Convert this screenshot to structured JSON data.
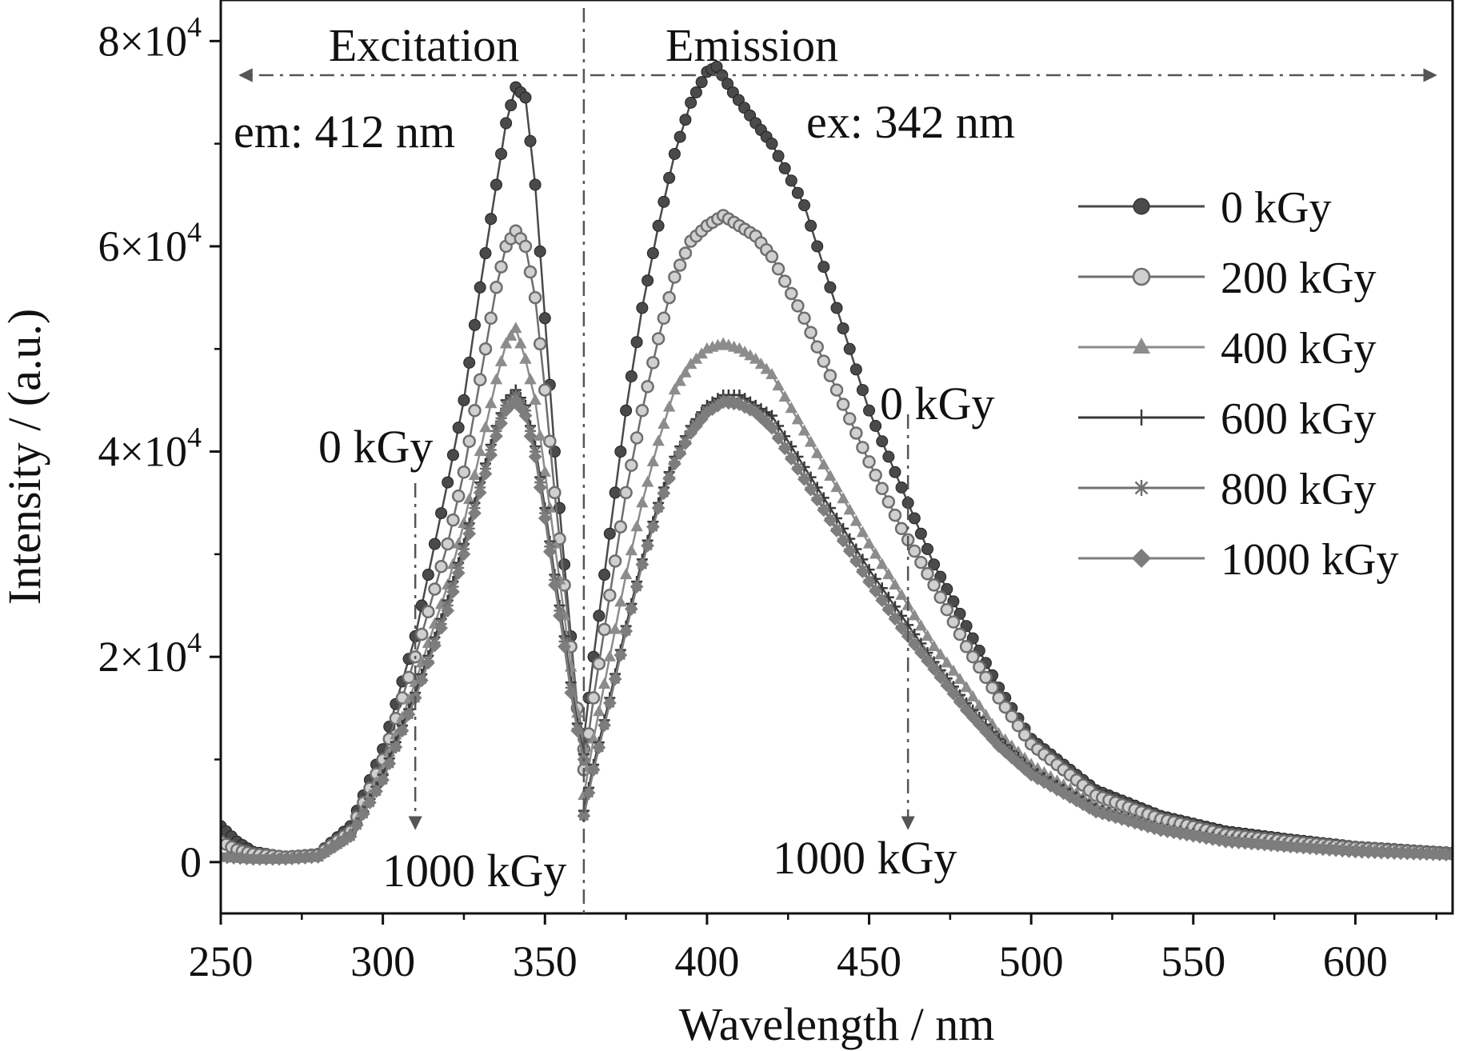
{
  "chart_data": {
    "type": "line",
    "xlabel": "Wavelength / nm",
    "ylabel": "Intensity / (a.u.)",
    "xlim": [
      250,
      630
    ],
    "ylim": [
      -5000,
      84000
    ],
    "x_ticks": [
      250,
      300,
      350,
      400,
      450,
      500,
      550,
      600
    ],
    "x_tick_labels": [
      "250",
      "300",
      "350",
      "400",
      "450",
      "500",
      "550",
      "600"
    ],
    "y_ticks": [
      0,
      20000,
      40000,
      60000,
      80000
    ],
    "y_tick_labels": [
      {
        "mantissa": "0",
        "exp": ""
      },
      {
        "mantissa": "2×10",
        "exp": "4"
      },
      {
        "mantissa": "4×10",
        "exp": "4"
      },
      {
        "mantissa": "6×10",
        "exp": "4"
      },
      {
        "mantissa": "8×10",
        "exp": "4"
      }
    ],
    "grid": false,
    "legend_position": "right",
    "divider_x": 362,
    "region_labels": {
      "excitation": "Excitation",
      "emission": "Emission",
      "em_note": "em: 412 nm",
      "ex_note": "ex: 342 nm"
    },
    "arrow_labels": {
      "left_top": "0 kGy",
      "left_bottom": "1000 kGy",
      "right_top": "0 kGy",
      "right_bottom": "1000 kGy"
    },
    "arrow_x": {
      "left": 310,
      "right": 462
    },
    "series": [
      {
        "name": "0 kGy",
        "marker": "circle-filled",
        "color": "#4a4a4a",
        "excitation": [
          [
            250,
            3500
          ],
          [
            255,
            2000
          ],
          [
            260,
            1000
          ],
          [
            270,
            500
          ],
          [
            280,
            800
          ],
          [
            290,
            3500
          ],
          [
            300,
            11000
          ],
          [
            310,
            22000
          ],
          [
            320,
            37000
          ],
          [
            325,
            45000
          ],
          [
            330,
            56000
          ],
          [
            335,
            66000
          ],
          [
            338,
            72000
          ],
          [
            341,
            75500
          ],
          [
            344,
            74500
          ],
          [
            347,
            66000
          ],
          [
            350,
            53000
          ],
          [
            353,
            40000
          ],
          [
            356,
            29000
          ],
          [
            358,
            22000
          ],
          [
            360,
            15000
          ],
          [
            362,
            12000
          ]
        ],
        "emission": [
          [
            362,
            12000
          ],
          [
            365,
            20000
          ],
          [
            370,
            32000
          ],
          [
            375,
            44000
          ],
          [
            380,
            54000
          ],
          [
            385,
            62000
          ],
          [
            390,
            69000
          ],
          [
            395,
            74000
          ],
          [
            400,
            77000
          ],
          [
            403,
            77500
          ],
          [
            408,
            75000
          ],
          [
            415,
            72000
          ],
          [
            420,
            70000
          ],
          [
            430,
            64000
          ],
          [
            440,
            54000
          ],
          [
            450,
            44000
          ],
          [
            460,
            36500
          ],
          [
            470,
            29000
          ],
          [
            480,
            23000
          ],
          [
            490,
            17000
          ],
          [
            500,
            12000
          ],
          [
            520,
            7000
          ],
          [
            540,
            4500
          ],
          [
            560,
            3000
          ],
          [
            580,
            2200
          ],
          [
            600,
            1500
          ],
          [
            630,
            900
          ]
        ]
      },
      {
        "name": "200 kGy",
        "marker": "circle-open",
        "color": "#6e6e6e",
        "excitation": [
          [
            250,
            2000
          ],
          [
            255,
            1200
          ],
          [
            260,
            800
          ],
          [
            270,
            500
          ],
          [
            280,
            700
          ],
          [
            290,
            3000
          ],
          [
            300,
            10000
          ],
          [
            310,
            20000
          ],
          [
            320,
            31000
          ],
          [
            325,
            38000
          ],
          [
            330,
            47000
          ],
          [
            335,
            56000
          ],
          [
            338,
            60000
          ],
          [
            341,
            61500
          ],
          [
            344,
            60000
          ],
          [
            347,
            55000
          ],
          [
            350,
            46000
          ],
          [
            353,
            36000
          ],
          [
            356,
            27000
          ],
          [
            358,
            21000
          ],
          [
            360,
            15000
          ],
          [
            362,
            11000
          ]
        ],
        "emission": [
          [
            362,
            9000
          ],
          [
            365,
            16000
          ],
          [
            370,
            26000
          ],
          [
            375,
            36000
          ],
          [
            380,
            44000
          ],
          [
            385,
            51000
          ],
          [
            390,
            57000
          ],
          [
            395,
            60500
          ],
          [
            400,
            62000
          ],
          [
            405,
            63000
          ],
          [
            410,
            62000
          ],
          [
            415,
            61000
          ],
          [
            420,
            59000
          ],
          [
            430,
            53000
          ],
          [
            440,
            46000
          ],
          [
            450,
            39000
          ],
          [
            460,
            32500
          ],
          [
            470,
            27000
          ],
          [
            480,
            21000
          ],
          [
            490,
            16000
          ],
          [
            500,
            11500
          ],
          [
            520,
            6500
          ],
          [
            540,
            4200
          ],
          [
            560,
            2700
          ],
          [
            580,
            2000
          ],
          [
            600,
            1400
          ],
          [
            630,
            800
          ]
        ]
      },
      {
        "name": "400 kGy",
        "marker": "triangle",
        "color": "#8c8c8c",
        "excitation": [
          [
            250,
            500
          ],
          [
            260,
            300
          ],
          [
            270,
            300
          ],
          [
            280,
            500
          ],
          [
            290,
            2800
          ],
          [
            300,
            9000
          ],
          [
            310,
            17500
          ],
          [
            320,
            27000
          ],
          [
            325,
            33000
          ],
          [
            330,
            40000
          ],
          [
            335,
            47000
          ],
          [
            338,
            50500
          ],
          [
            341,
            52000
          ],
          [
            344,
            49000
          ],
          [
            347,
            45000
          ],
          [
            350,
            38000
          ],
          [
            353,
            31000
          ],
          [
            356,
            24000
          ],
          [
            358,
            19000
          ],
          [
            360,
            14500
          ],
          [
            362,
            11000
          ]
        ],
        "emission": [
          [
            362,
            6500
          ],
          [
            365,
            12000
          ],
          [
            370,
            20000
          ],
          [
            375,
            28000
          ],
          [
            380,
            35000
          ],
          [
            385,
            41000
          ],
          [
            390,
            46000
          ],
          [
            395,
            48500
          ],
          [
            400,
            50000
          ],
          [
            405,
            50500
          ],
          [
            410,
            50000
          ],
          [
            415,
            49000
          ],
          [
            420,
            47500
          ],
          [
            430,
            42000
          ],
          [
            440,
            36500
          ],
          [
            450,
            31000
          ],
          [
            460,
            26000
          ],
          [
            470,
            21000
          ],
          [
            480,
            17000
          ],
          [
            490,
            12500
          ],
          [
            500,
            9500
          ],
          [
            520,
            5500
          ],
          [
            540,
            3500
          ],
          [
            560,
            2300
          ],
          [
            580,
            1700
          ],
          [
            600,
            1200
          ],
          [
            630,
            700
          ]
        ]
      },
      {
        "name": "600 kGy",
        "marker": "plus",
        "color": "#3a3a3a",
        "excitation": [
          [
            250,
            500
          ],
          [
            260,
            300
          ],
          [
            270,
            300
          ],
          [
            280,
            500
          ],
          [
            290,
            2600
          ],
          [
            300,
            8500
          ],
          [
            310,
            16500
          ],
          [
            320,
            25500
          ],
          [
            325,
            31000
          ],
          [
            330,
            37000
          ],
          [
            335,
            42500
          ],
          [
            338,
            45000
          ],
          [
            341,
            46000
          ],
          [
            344,
            44500
          ],
          [
            347,
            40500
          ],
          [
            350,
            34500
          ],
          [
            353,
            28000
          ],
          [
            356,
            22000
          ],
          [
            358,
            17500
          ],
          [
            360,
            13500
          ],
          [
            362,
            10500
          ]
        ],
        "emission": [
          [
            362,
            5000
          ],
          [
            365,
            9500
          ],
          [
            370,
            16000
          ],
          [
            375,
            23000
          ],
          [
            380,
            29500
          ],
          [
            385,
            35000
          ],
          [
            390,
            39500
          ],
          [
            395,
            42500
          ],
          [
            400,
            44500
          ],
          [
            405,
            45500
          ],
          [
            410,
            45500
          ],
          [
            415,
            44500
          ],
          [
            420,
            43500
          ],
          [
            430,
            38500
          ],
          [
            440,
            33500
          ],
          [
            450,
            28500
          ],
          [
            460,
            24000
          ],
          [
            470,
            19500
          ],
          [
            480,
            15500
          ],
          [
            490,
            12000
          ],
          [
            500,
            9000
          ],
          [
            520,
            5200
          ],
          [
            540,
            3300
          ],
          [
            560,
            2200
          ],
          [
            580,
            1600
          ],
          [
            600,
            1100
          ],
          [
            630,
            700
          ]
        ]
      },
      {
        "name": "800 kGy",
        "marker": "asterisk",
        "color": "#707070",
        "excitation": [
          [
            250,
            500
          ],
          [
            260,
            300
          ],
          [
            270,
            300
          ],
          [
            280,
            500
          ],
          [
            290,
            2500
          ],
          [
            300,
            8000
          ],
          [
            310,
            16000
          ],
          [
            320,
            25000
          ],
          [
            325,
            30500
          ],
          [
            330,
            36500
          ],
          [
            335,
            42000
          ],
          [
            338,
            44500
          ],
          [
            341,
            45500
          ],
          [
            344,
            44000
          ],
          [
            347,
            40000
          ],
          [
            350,
            34000
          ],
          [
            353,
            27500
          ],
          [
            356,
            21500
          ],
          [
            358,
            17000
          ],
          [
            360,
            13000
          ],
          [
            362,
            10000
          ]
        ],
        "emission": [
          [
            362,
            4500
          ],
          [
            365,
            9000
          ],
          [
            370,
            15500
          ],
          [
            375,
            22500
          ],
          [
            380,
            29000
          ],
          [
            385,
            34500
          ],
          [
            390,
            39000
          ],
          [
            395,
            42000
          ],
          [
            400,
            44000
          ],
          [
            405,
            45000
          ],
          [
            410,
            44800
          ],
          [
            415,
            44000
          ],
          [
            420,
            42500
          ],
          [
            430,
            37500
          ],
          [
            440,
            32500
          ],
          [
            450,
            27500
          ],
          [
            460,
            23000
          ],
          [
            470,
            19000
          ],
          [
            480,
            15000
          ],
          [
            490,
            11500
          ],
          [
            500,
            8700
          ],
          [
            520,
            5000
          ],
          [
            540,
            3200
          ],
          [
            560,
            2100
          ],
          [
            580,
            1500
          ],
          [
            600,
            1100
          ],
          [
            630,
            700
          ]
        ]
      },
      {
        "name": "1000 kGy",
        "marker": "diamond",
        "color": "#7d7d7d",
        "excitation": [
          [
            250,
            500
          ],
          [
            260,
            300
          ],
          [
            270,
            300
          ],
          [
            280,
            500
          ],
          [
            290,
            2500
          ],
          [
            300,
            8000
          ],
          [
            310,
            16000
          ],
          [
            320,
            24500
          ],
          [
            325,
            30000
          ],
          [
            330,
            36000
          ],
          [
            335,
            41500
          ],
          [
            338,
            44000
          ],
          [
            341,
            45000
          ],
          [
            344,
            43500
          ],
          [
            347,
            39500
          ],
          [
            350,
            33500
          ],
          [
            353,
            27000
          ],
          [
            356,
            21000
          ],
          [
            358,
            16500
          ],
          [
            360,
            12800
          ],
          [
            362,
            10000
          ]
        ],
        "emission": [
          [
            362,
            4500
          ],
          [
            365,
            9000
          ],
          [
            370,
            15500
          ],
          [
            375,
            22500
          ],
          [
            380,
            29000
          ],
          [
            385,
            34500
          ],
          [
            390,
            38800
          ],
          [
            395,
            41800
          ],
          [
            400,
            43800
          ],
          [
            405,
            44800
          ],
          [
            410,
            44600
          ],
          [
            415,
            43800
          ],
          [
            420,
            42300
          ],
          [
            430,
            37300
          ],
          [
            440,
            32300
          ],
          [
            450,
            27300
          ],
          [
            460,
            22800
          ],
          [
            470,
            18800
          ],
          [
            480,
            14800
          ],
          [
            490,
            11300
          ],
          [
            500,
            8500
          ],
          [
            520,
            4900
          ],
          [
            540,
            3100
          ],
          [
            560,
            2000
          ],
          [
            580,
            1500
          ],
          [
            600,
            1000
          ],
          [
            630,
            700
          ]
        ]
      }
    ]
  }
}
